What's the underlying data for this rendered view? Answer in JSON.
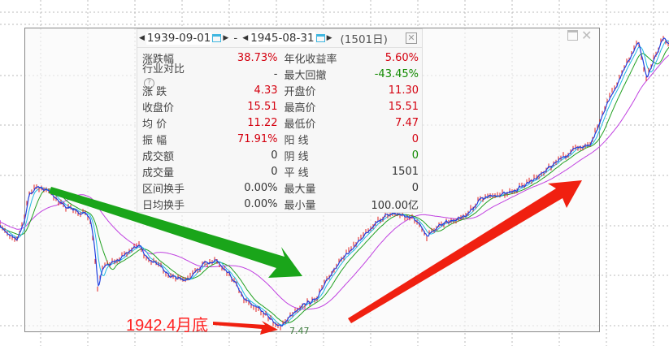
{
  "panel": {
    "start_date": "1939-09-01",
    "separator": "-",
    "end_date": "1945-08-31",
    "days": "(1501日)",
    "rows": [
      {
        "l1": "涨跌幅",
        "v1": "38.73%",
        "c1": "red",
        "l2": "年化收益率",
        "v2": "5.60%",
        "c2": "red"
      },
      {
        "l1": "行业对比",
        "v1": "-",
        "c1": "dark",
        "l2": "最大回撤",
        "v2": "-43.45%",
        "c2": "green",
        "help": "?"
      },
      {
        "l1": "涨  跌",
        "v1": "4.33",
        "c1": "red",
        "l2": "开盘价",
        "v2": "11.30",
        "c2": "red"
      },
      {
        "l1": "收盘价",
        "v1": "15.51",
        "c1": "red",
        "l2": "最高价",
        "v2": "15.51",
        "c2": "red"
      },
      {
        "l1": "均  价",
        "v1": "11.22",
        "c1": "red",
        "l2": "最低价",
        "v2": "7.47",
        "c2": "red"
      },
      {
        "l1": "振  幅",
        "v1": "71.91%",
        "c1": "red",
        "l2": "阳  线",
        "v2": "0",
        "c2": "red"
      },
      {
        "l1": "成交额",
        "v1": "0",
        "c1": "dark",
        "l2": "阴  线",
        "v2": "0",
        "c2": "green"
      },
      {
        "l1": "成交量",
        "v1": "0",
        "c1": "dark",
        "l2": "平  线",
        "v2": "1501",
        "c2": "dark"
      },
      {
        "l1": "区间换手",
        "v1": "0.00%",
        "c1": "dark",
        "l2": "最大量",
        "v2": "0",
        "c2": "dark"
      },
      {
        "l1": "日均换手",
        "v1": "0.00%",
        "c1": "dark",
        "l2": "最小量",
        "v2": "100.00亿",
        "c2": "dark"
      }
    ]
  },
  "chart": {
    "annotation": "1942.4月底",
    "low_label": "7.47",
    "colors": {
      "price": "#2040e0",
      "candle_up": "#e02020",
      "ma5": "#20b8e0",
      "ma20": "#20a020",
      "ma60": "#c040e0",
      "down_arrow": "#1aa51a",
      "up_arrow": "#f02010"
    }
  },
  "icons": {
    "prev": "triangle-left-icon",
    "next": "triangle-right-icon",
    "calendar": "calendar-icon",
    "close": "close-icon",
    "help": "help-icon"
  }
}
